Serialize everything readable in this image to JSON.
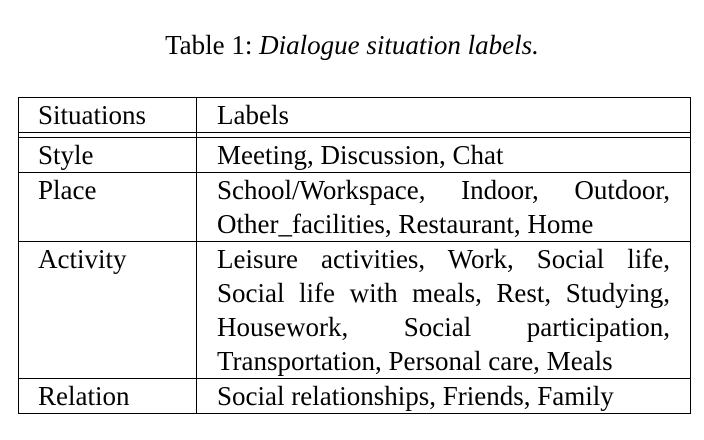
{
  "caption": {
    "prefix": "Table 1: ",
    "text": "Dialogue situation labels."
  },
  "table": {
    "headers": [
      "Situations",
      "Labels"
    ],
    "rows": [
      {
        "situation": "Style",
        "labels": "Meeting, Discussion, Chat"
      },
      {
        "situation": "Place",
        "labels": "School/Workspace, Indoor, Outdoor, Other_facilities, Restaurant, Home"
      },
      {
        "situation": "Activity",
        "labels": "Leisure activities, Work, Social life, Social life with meals, Rest, Studying, Housework, Social participation, Transportation, Personal care, Meals"
      },
      {
        "situation": "Relation",
        "labels": "Social relationships, Friends, Family"
      }
    ]
  }
}
